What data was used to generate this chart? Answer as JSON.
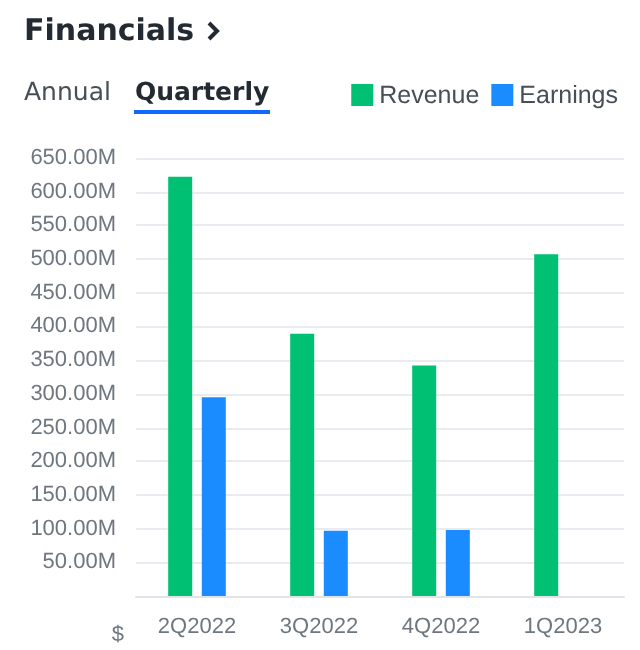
{
  "chart_data": {
    "type": "bar",
    "title": "Financials",
    "annotations": [
      "Annual",
      "Quarterly"
    ],
    "ylabel": "$",
    "categories": [
      "2Q2022",
      "3Q2022",
      "4Q2022",
      "1Q2023"
    ],
    "series": [
      {
        "name": "Revenue",
        "color": "#00c073",
        "values": [
          622,
          389,
          342,
          507
        ]
      },
      {
        "name": "Earnings",
        "color": "#1a8cff",
        "values": [
          295,
          97,
          98,
          null
        ]
      }
    ],
    "ylim": [
      0,
      650
    ],
    "yticks": [
      {
        "value": 50,
        "label": "50.00M"
      },
      {
        "value": 100,
        "label": "100.00M"
      },
      {
        "value": 150,
        "label": "150.00M"
      },
      {
        "value": 200,
        "label": "200.00M"
      },
      {
        "value": 250,
        "label": "250.00M"
      },
      {
        "value": 300,
        "label": "300.00M"
      },
      {
        "value": 350,
        "label": "350.00M"
      },
      {
        "value": 400,
        "label": "400.00M"
      },
      {
        "value": 450,
        "label": "450.00M"
      },
      {
        "value": 500,
        "label": "500.00M"
      },
      {
        "value": 550,
        "label": "550.00M"
      },
      {
        "value": 600,
        "label": "600.00M"
      },
      {
        "value": 650,
        "label": "650.00M"
      }
    ],
    "grid": "y",
    "legend": "top right"
  }
}
